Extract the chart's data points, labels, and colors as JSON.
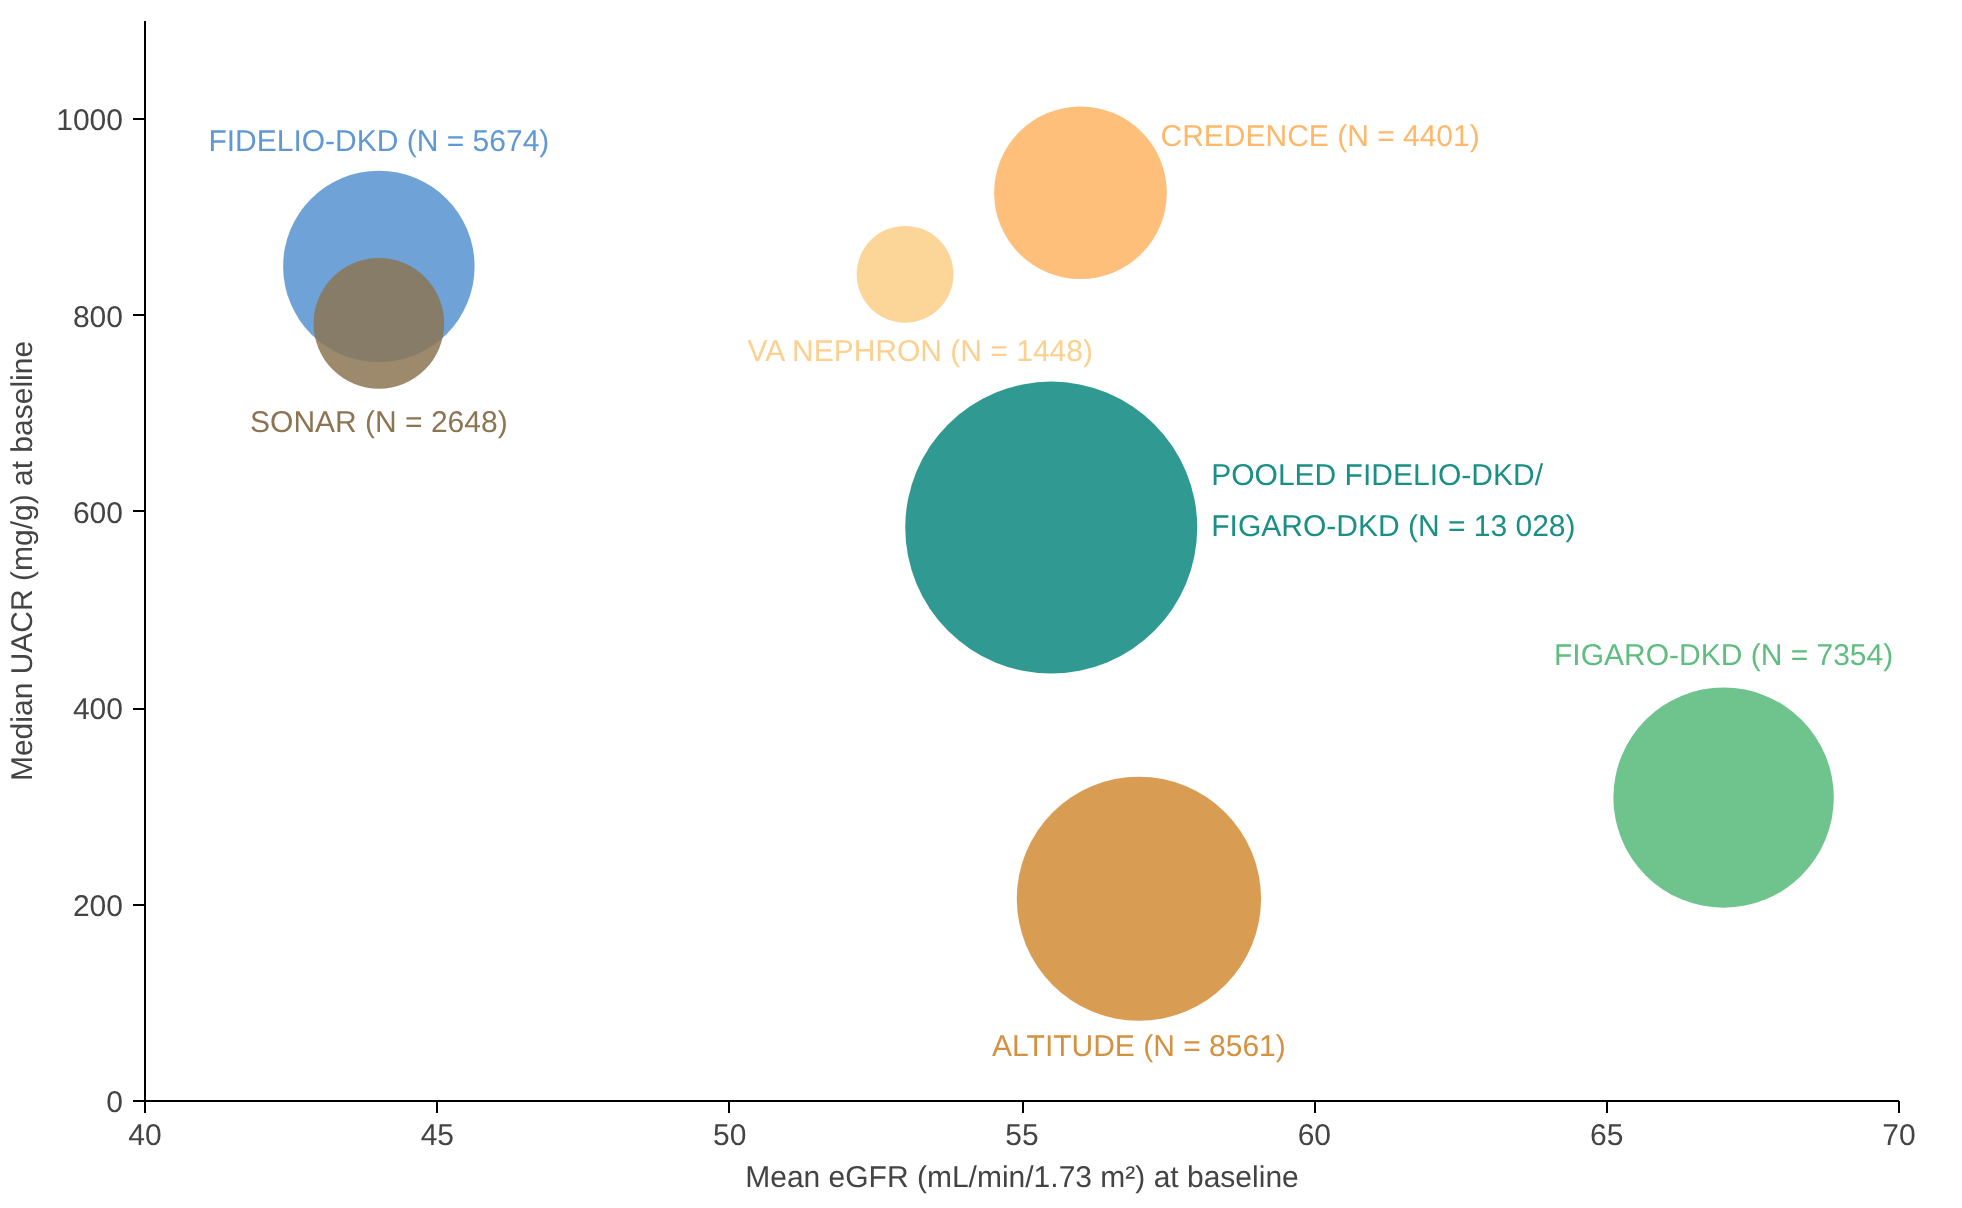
{
  "chart_data": {
    "type": "bubble",
    "xlabel": "Mean eGFR (mL/min/1.73 m²) at baseline",
    "ylabel": "Median UACR (mg/g) at baseline",
    "xlim": [
      40,
      70
    ],
    "xticks": [
      40,
      45,
      50,
      55,
      60,
      65,
      70
    ],
    "ylim": [
      0,
      1100
    ],
    "yticks": [
      0,
      200,
      400,
      600,
      800,
      1000
    ],
    "series": [
      {
        "name": "FIDELIO-DKD (N = 5674)",
        "color": "#5f98d2",
        "x": [
          44.0
        ],
        "values": [
          850
        ],
        "sizes": [
          0.43
        ]
      },
      {
        "name": "SONAR (N = 2648)",
        "color": "#8c7553",
        "x": [
          44.0
        ],
        "values": [
          792
        ],
        "sizes": [
          0.2
        ]
      },
      {
        "name": "VA NEPHRON (N = 1448)",
        "color": "#fcd08e",
        "x": [
          53.0
        ],
        "values": [
          842
        ],
        "sizes": [
          0.11
        ]
      },
      {
        "name": "CREDENCE (N = 4401)",
        "color": "#fdb86a",
        "x": [
          56.0
        ],
        "values": [
          925
        ],
        "sizes": [
          0.35
        ]
      },
      {
        "name": "POOLED FIDELIO-DKD/\nFIGARO-DKD (N = 13 028)",
        "color": "#1a8f86",
        "x": [
          55.5
        ],
        "values": [
          584
        ],
        "sizes": [
          1
        ]
      },
      {
        "name": "ALTITUDE (N = 8561)",
        "color": "#d4913f",
        "x": [
          57.0
        ],
        "values": [
          206
        ],
        "sizes": [
          0.7
        ]
      },
      {
        "name": "FIGARO-DKD (N = 7354)",
        "color": "#5fbd80",
        "x": [
          67.0
        ],
        "values": [
          309
        ],
        "sizes": [
          0.57
        ]
      }
    ]
  }
}
